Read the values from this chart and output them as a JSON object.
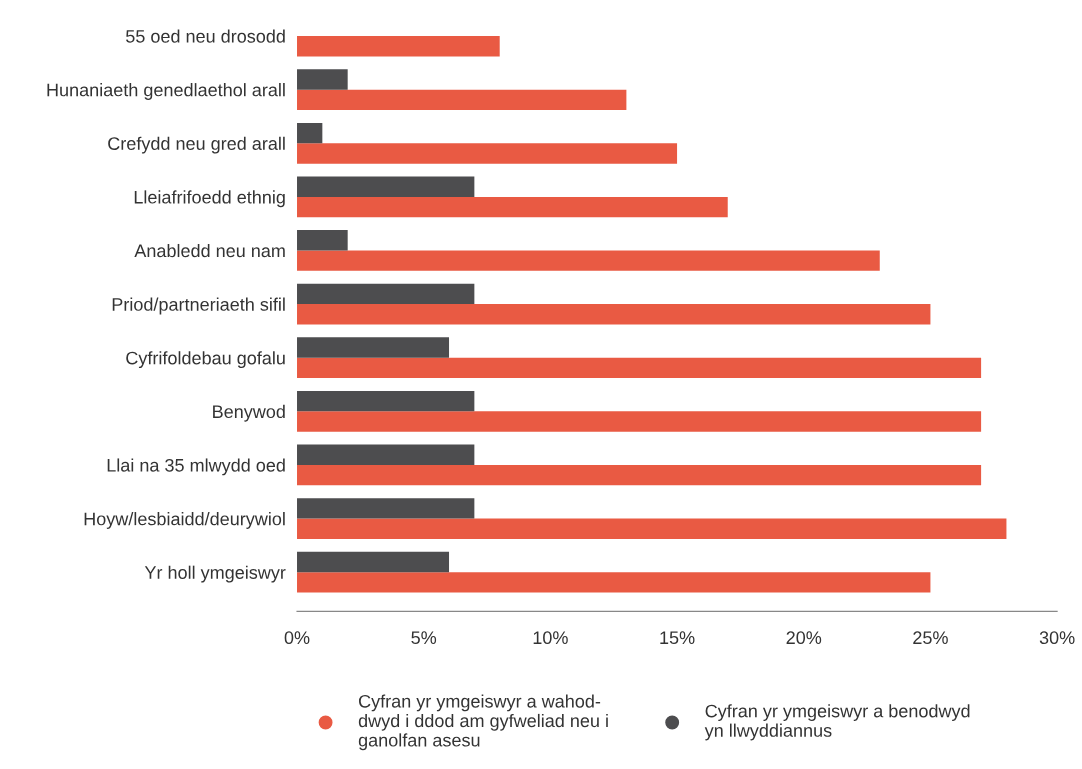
{
  "chart_data": {
    "type": "bar",
    "orientation": "horizontal",
    "categories": [
      "55 oed neu drosodd",
      "Hunaniaeth genedlaethol arall",
      "Crefydd neu gred arall",
      "Lleiafrifoedd ethnig",
      "Anabledd neu nam",
      "Priod/partneriaeth sifil",
      "Cyfrifoldebau gofalu",
      "Benywod",
      "Llai na 35 mlwydd oed",
      "Hoyw/lesbiaidd/deurywiol",
      "Yr holl ymgeiswyr"
    ],
    "series": [
      {
        "name": "Cyfran yr ymgeiswyr a wahod-\ndwyd i ddod am gyfweliad neu i\nganolfan asesu",
        "color": "#e95a43",
        "values": [
          8,
          13,
          15,
          17,
          23,
          25,
          27,
          27,
          27,
          28,
          25
        ]
      },
      {
        "name": "Cyfran yr ymgeiswyr a benodwyd\nyn llwyddiannus",
        "color": "#4d4d4f",
        "values": [
          null,
          2,
          1,
          7,
          2,
          7,
          6,
          7,
          7,
          7,
          6
        ]
      }
    ],
    "xlim": [
      0,
      30
    ],
    "xticks": [
      {
        "value": 0,
        "label": "0%"
      },
      {
        "value": 5,
        "label": "5%"
      },
      {
        "value": 10,
        "label": "10%"
      },
      {
        "value": 15,
        "label": "15%"
      },
      {
        "value": 20,
        "label": "20%"
      },
      {
        "value": 25,
        "label": "25%"
      },
      {
        "value": 30,
        "label": "30%"
      }
    ],
    "grid": false,
    "legend": "bottom",
    "marker": "circle"
  }
}
